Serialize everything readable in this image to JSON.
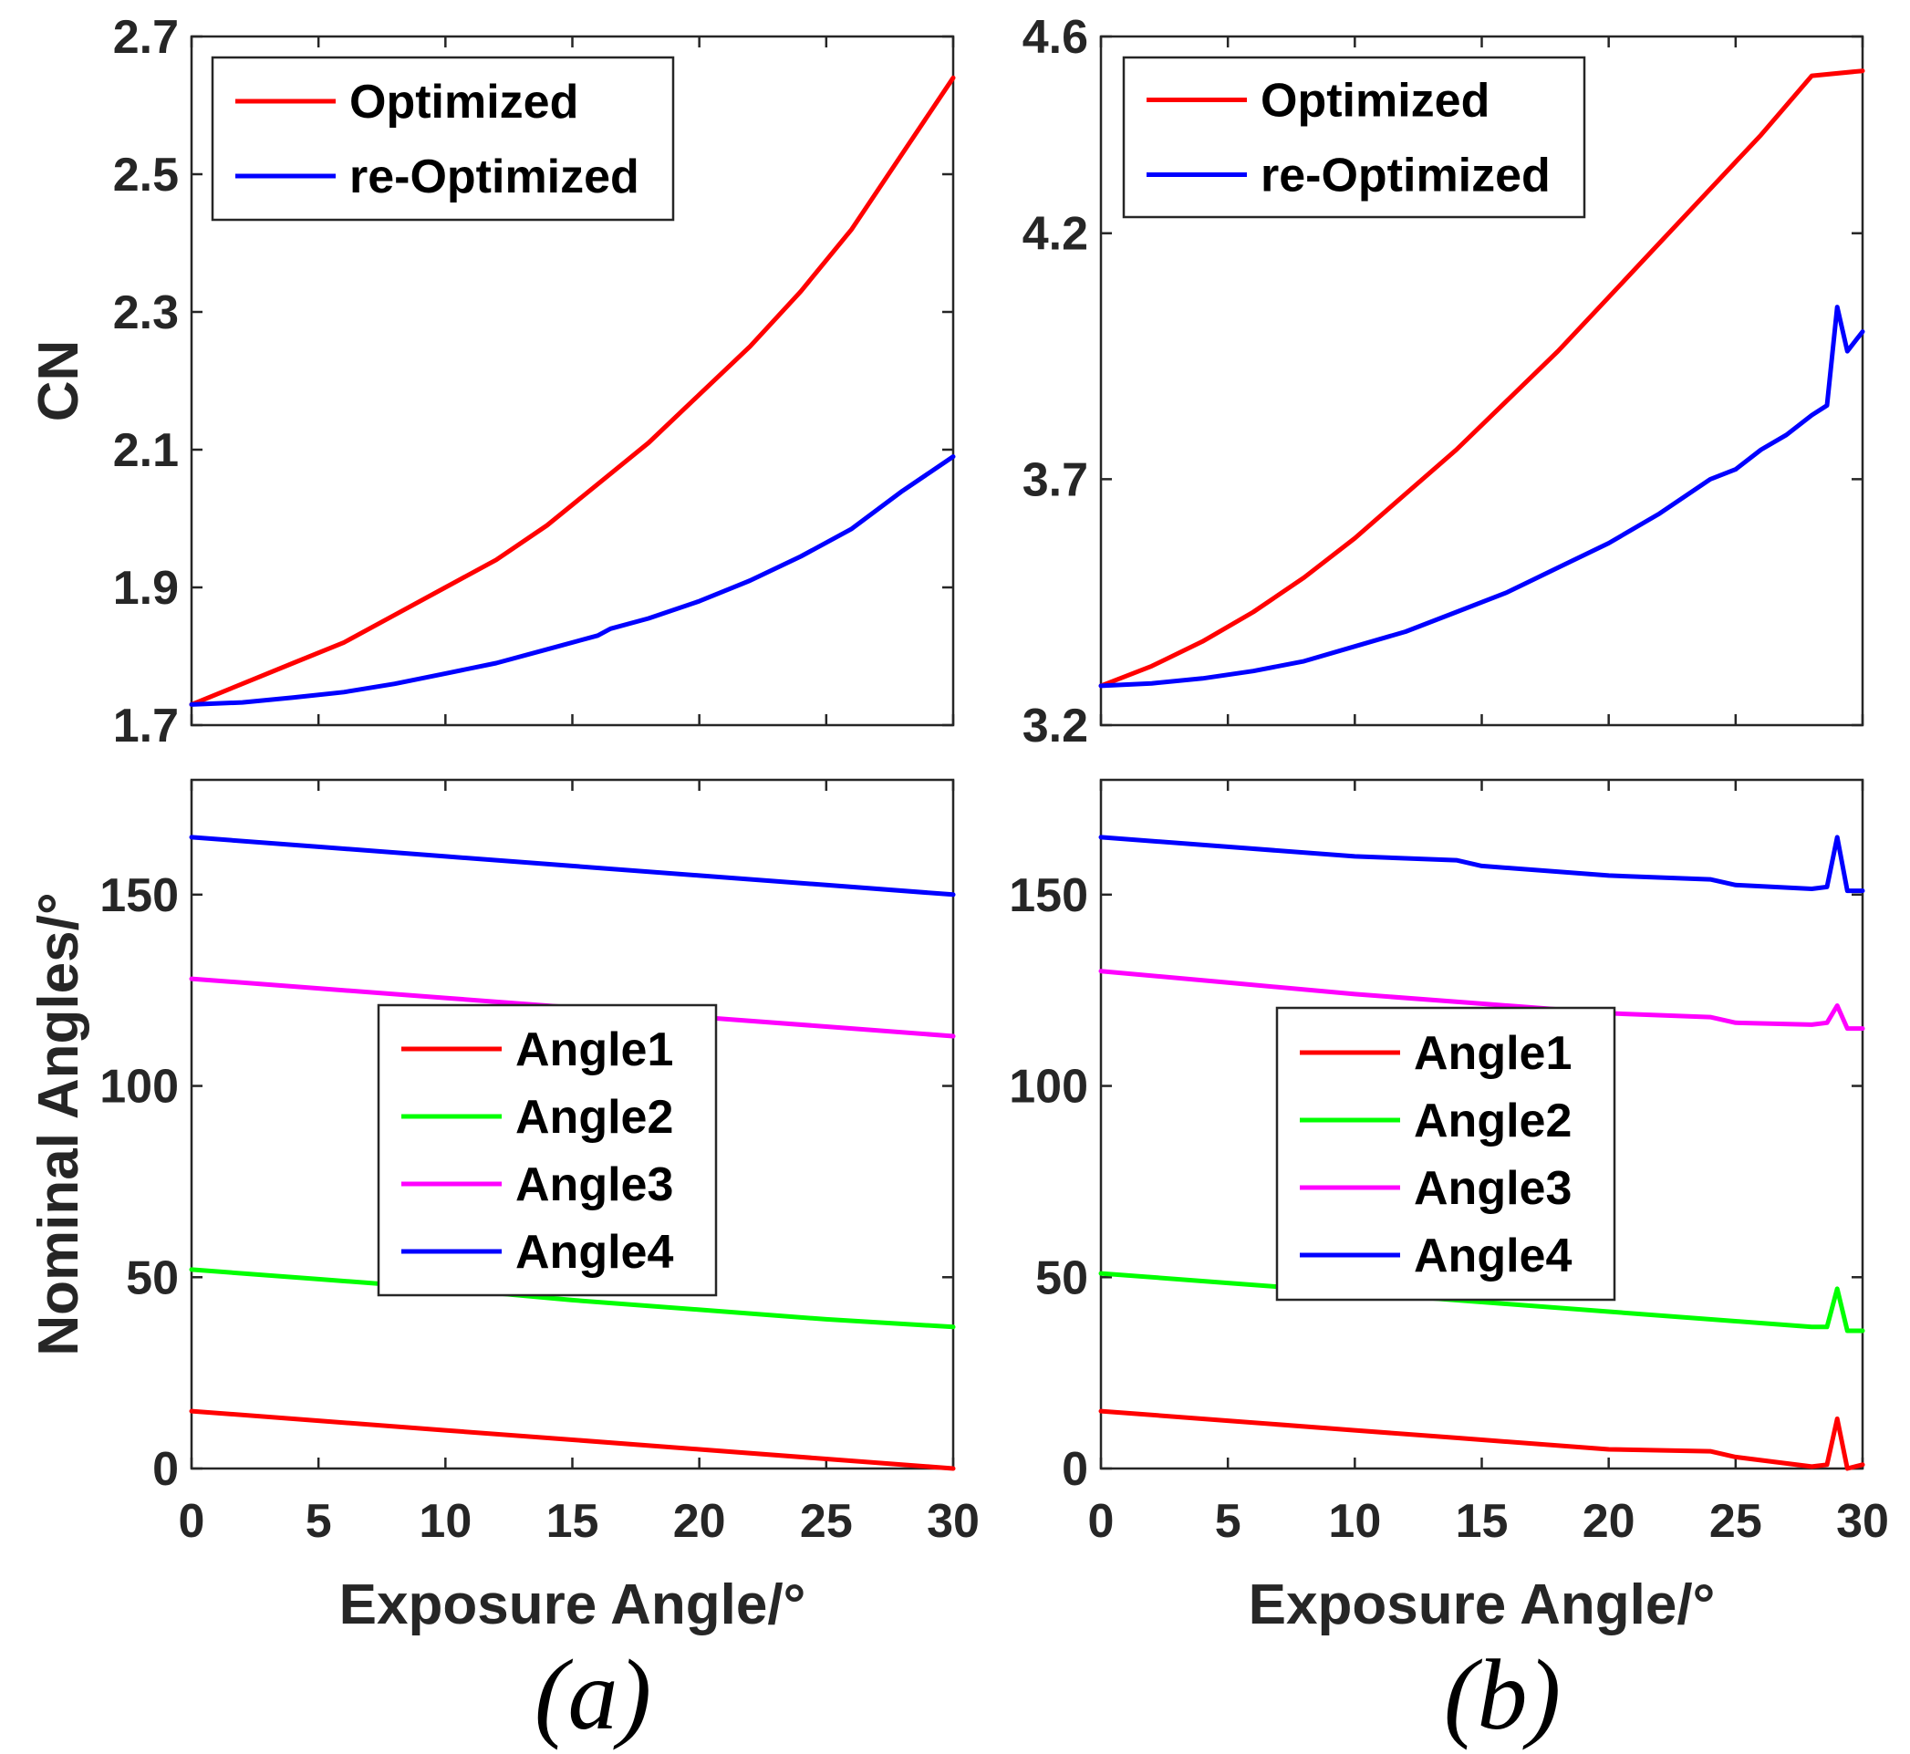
{
  "colors": {
    "optimized": "#ff0000",
    "reoptimized": "#0000ff",
    "angle1": "#ff0000",
    "angle2": "#00ff00",
    "angle3": "#ff00ff",
    "angle4": "#0000ff"
  },
  "chart_data": [
    {
      "id": "a_top",
      "type": "line",
      "panel": "a",
      "xlabel": "",
      "ylabel": "CN",
      "xlim": [
        0,
        30
      ],
      "ylim": [
        1.7,
        2.7
      ],
      "xticks": [
        "0",
        "5",
        "10",
        "15",
        "20",
        "25",
        "30"
      ],
      "yticks": [
        "1.7",
        "1.9",
        "2.1",
        "2.3",
        "2.5",
        "2.7"
      ],
      "legend": {
        "placement": "top-left",
        "entries": [
          "Optimized",
          "re-Optimized"
        ]
      },
      "series": [
        {
          "name": "Optimized",
          "color": "#ff0000",
          "x": [
            0,
            2,
            4,
            6,
            8,
            10,
            12,
            14,
            16,
            18,
            20,
            22,
            24,
            26,
            28,
            30
          ],
          "y": [
            1.73,
            1.76,
            1.79,
            1.82,
            1.86,
            1.9,
            1.94,
            1.99,
            2.05,
            2.11,
            2.18,
            2.25,
            2.33,
            2.42,
            2.53,
            2.64
          ]
        },
        {
          "name": "re-Optimized",
          "color": "#0000ff",
          "x": [
            0,
            2,
            4,
            6,
            8,
            10,
            12,
            14,
            16,
            16.5,
            18,
            20,
            22,
            24,
            26,
            28,
            30
          ],
          "y": [
            1.73,
            1.733,
            1.74,
            1.748,
            1.76,
            1.775,
            1.79,
            1.81,
            1.83,
            1.84,
            1.855,
            1.88,
            1.91,
            1.945,
            1.985,
            2.04,
            2.09
          ]
        }
      ]
    },
    {
      "id": "b_top",
      "type": "line",
      "panel": "b",
      "xlabel": "",
      "ylabel": "",
      "xlim": [
        0,
        30
      ],
      "ylim": [
        3.2,
        4.6
      ],
      "xticks": [
        "0",
        "5",
        "10",
        "15",
        "20",
        "25",
        "30"
      ],
      "yticks": [
        "3.2",
        "3.7",
        "4.2",
        "4.6"
      ],
      "legend": {
        "placement": "top-left",
        "entries": [
          "Optimized",
          "re-Optimized"
        ]
      },
      "series": [
        {
          "name": "Optimized",
          "color": "#ff0000",
          "x": [
            0,
            2,
            4,
            6,
            8,
            10,
            12,
            14,
            16,
            18,
            20,
            22,
            24,
            26,
            28,
            30
          ],
          "y": [
            3.28,
            3.32,
            3.37,
            3.43,
            3.5,
            3.58,
            3.67,
            3.76,
            3.86,
            3.96,
            4.07,
            4.18,
            4.29,
            4.4,
            4.52,
            4.53
          ]
        },
        {
          "name": "re-Optimized",
          "color": "#0000ff",
          "x": [
            0,
            2,
            4,
            6,
            8,
            10,
            12,
            14,
            16,
            18,
            20,
            22,
            24,
            25,
            26,
            27,
            28,
            28.6,
            29,
            29.4,
            30
          ],
          "y": [
            3.28,
            3.285,
            3.295,
            3.31,
            3.33,
            3.36,
            3.39,
            3.43,
            3.47,
            3.52,
            3.57,
            3.63,
            3.7,
            3.72,
            3.76,
            3.79,
            3.83,
            3.85,
            4.05,
            3.96,
            4.0
          ]
        }
      ]
    },
    {
      "id": "a_bottom",
      "type": "line",
      "panel": "a",
      "xlabel": "Exposure Angle/°",
      "ylabel": "Nominal Angles/°",
      "xlim": [
        0,
        30
      ],
      "ylim": [
        0,
        180
      ],
      "xticks": [
        "0",
        "5",
        "10",
        "15",
        "20",
        "25",
        "30"
      ],
      "yticks": [
        "0",
        "50",
        "100",
        "150"
      ],
      "legend": {
        "placement": "center",
        "entries": [
          "Angle1",
          "Angle2",
          "Angle3",
          "Angle4"
        ]
      },
      "series": [
        {
          "name": "Angle1",
          "color": "#ff0000",
          "x": [
            0,
            5,
            10,
            15,
            20,
            25,
            30
          ],
          "y": [
            15,
            12.5,
            10,
            7.5,
            5,
            2.5,
            0
          ]
        },
        {
          "name": "Angle2",
          "color": "#00ff00",
          "x": [
            0,
            5,
            10,
            15,
            20,
            25,
            30
          ],
          "y": [
            52,
            49.5,
            47,
            44,
            41.5,
            39,
            37
          ]
        },
        {
          "name": "Angle3",
          "color": "#ff00ff",
          "x": [
            0,
            5,
            10,
            15,
            20,
            25,
            30
          ],
          "y": [
            128,
            125.5,
            123,
            120.5,
            118,
            115.5,
            113
          ]
        },
        {
          "name": "Angle4",
          "color": "#0000ff",
          "x": [
            0,
            5,
            10,
            15,
            20,
            25,
            30
          ],
          "y": [
            165,
            162.5,
            160,
            157.5,
            155,
            152.5,
            150
          ]
        }
      ]
    },
    {
      "id": "b_bottom",
      "type": "line",
      "panel": "b",
      "xlabel": "Exposure Angle/°",
      "ylabel": "",
      "xlim": [
        0,
        30
      ],
      "ylim": [
        0,
        180
      ],
      "xticks": [
        "0",
        "5",
        "10",
        "15",
        "20",
        "25",
        "30"
      ],
      "yticks": [
        "0",
        "50",
        "100",
        "150"
      ],
      "legend": {
        "placement": "center",
        "entries": [
          "Angle1",
          "Angle2",
          "Angle3",
          "Angle4"
        ]
      },
      "series": [
        {
          "name": "Angle1",
          "color": "#ff0000",
          "x": [
            0,
            5,
            10,
            14,
            15,
            20,
            24,
            25,
            28,
            28.6,
            29,
            29.4,
            30
          ],
          "y": [
            15,
            12.5,
            10,
            8,
            7.5,
            5,
            4.5,
            3,
            0.5,
            1,
            13,
            0,
            1
          ]
        },
        {
          "name": "Angle2",
          "color": "#00ff00",
          "x": [
            0,
            5,
            10,
            15,
            20,
            25,
            28,
            28.6,
            29,
            29.4,
            30
          ],
          "y": [
            51,
            48.5,
            46,
            43.5,
            41,
            38.5,
            37,
            37,
            47,
            36,
            36
          ]
        },
        {
          "name": "Angle3",
          "color": "#ff00ff",
          "x": [
            0,
            5,
            10,
            15,
            20,
            24,
            25,
            28,
            28.6,
            29,
            29.4,
            30
          ],
          "y": [
            130,
            127,
            124,
            121.5,
            119,
            118,
            116.5,
            116,
            116.5,
            121,
            115,
            115
          ]
        },
        {
          "name": "Angle4",
          "color": "#0000ff",
          "x": [
            0,
            5,
            10,
            14,
            15,
            20,
            24,
            25,
            28,
            28.6,
            29,
            29.4,
            30
          ],
          "y": [
            165,
            162.5,
            160,
            159,
            157.5,
            155,
            154,
            152.5,
            151.5,
            152,
            165,
            151,
            151
          ]
        }
      ]
    }
  ],
  "captions": [
    "(a)",
    "(b)"
  ]
}
